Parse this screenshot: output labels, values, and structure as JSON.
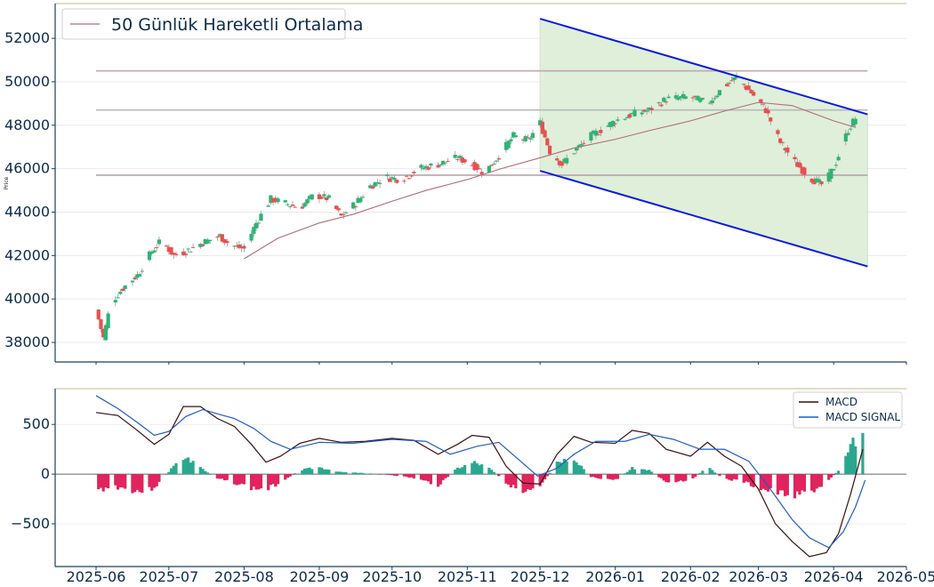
{
  "chart_data": [
    {
      "type": "candlestick",
      "ylabel": "Price",
      "ylim": [
        37100,
        53600
      ],
      "yticks": [
        38000,
        40000,
        42000,
        44000,
        46000,
        48000,
        50000,
        52000
      ],
      "ytick_labels": [
        "38000",
        "40000",
        "42000",
        "44000",
        "46000",
        "48000",
        "50000",
        "52000"
      ],
      "x_start": "2025-06-01",
      "x_end": "2026-04-15",
      "legend": {
        "label": "50 Günlük Hareketli Ortalama",
        "position": "top-left"
      },
      "horizontal_levels": [
        {
          "value": 50500,
          "color": "#c9a4ad"
        },
        {
          "value": 48700,
          "color": "#b9b9b9"
        },
        {
          "value": 45700,
          "color": "#b8a4a8"
        }
      ],
      "channel": {
        "color": "#0b1bdc",
        "fill": "#dcedd6",
        "upper": {
          "start_date": "2025-12-01",
          "start": 52900,
          "end_date": "2026-04-15",
          "end": 48500
        },
        "lower": {
          "start_date": "2025-12-01",
          "start": 45900,
          "end_date": "2026-04-15",
          "end": 41500
        }
      },
      "up_color": "#2ab673",
      "down_color": "#e8504d",
      "moving_average": {
        "name": "50 Günlük Hareketli Ortalama",
        "color": "#b06b7a",
        "points": [
          [
            "2025-08-01",
            41850
          ],
          [
            "2025-08-15",
            42800
          ],
          [
            "2025-09-01",
            43500
          ],
          [
            "2025-09-15",
            43900
          ],
          [
            "2025-10-01",
            44500
          ],
          [
            "2025-10-15",
            45000
          ],
          [
            "2025-11-01",
            45500
          ],
          [
            "2025-11-15",
            46000
          ],
          [
            "2025-12-01",
            46500
          ],
          [
            "2025-12-15",
            46950
          ],
          [
            "2026-01-01",
            47350
          ],
          [
            "2026-01-15",
            47750
          ],
          [
            "2026-02-01",
            48200
          ],
          [
            "2026-02-15",
            48650
          ],
          [
            "2026-03-01",
            49050
          ],
          [
            "2026-03-15",
            48900
          ],
          [
            "2026-04-01",
            48200
          ],
          [
            "2026-04-10",
            47900
          ]
        ]
      },
      "close_path": [
        [
          "2025-06-01",
          39500
        ],
        [
          "2025-06-04",
          38200
        ],
        [
          "2025-06-07",
          39800
        ],
        [
          "2025-06-12",
          40500
        ],
        [
          "2025-06-18",
          41100
        ],
        [
          "2025-06-24",
          42200
        ],
        [
          "2025-06-28",
          42700
        ],
        [
          "2025-07-03",
          42000
        ],
        [
          "2025-07-08",
          42200
        ],
        [
          "2025-07-15",
          42600
        ],
        [
          "2025-07-22",
          42900
        ],
        [
          "2025-07-26",
          42500
        ],
        [
          "2025-08-01",
          42300
        ],
        [
          "2025-08-06",
          43500
        ],
        [
          "2025-08-12",
          44600
        ],
        [
          "2025-08-18",
          44400
        ],
        [
          "2025-08-24",
          44200
        ],
        [
          "2025-08-30",
          44800
        ],
        [
          "2025-09-05",
          44600
        ],
        [
          "2025-09-10",
          43800
        ],
        [
          "2025-09-16",
          44400
        ],
        [
          "2025-09-22",
          45200
        ],
        [
          "2025-09-28",
          45600
        ],
        [
          "2025-10-05",
          45500
        ],
        [
          "2025-10-12",
          46000
        ],
        [
          "2025-10-20",
          46200
        ],
        [
          "2025-10-28",
          46500
        ],
        [
          "2025-11-03",
          46200
        ],
        [
          "2025-11-08",
          45800
        ],
        [
          "2025-11-14",
          46600
        ],
        [
          "2025-11-20",
          47500
        ],
        [
          "2025-11-26",
          47300
        ],
        [
          "2025-12-01",
          48100
        ],
        [
          "2025-12-05",
          46800
        ],
        [
          "2025-12-10",
          46200
        ],
        [
          "2025-12-15",
          46800
        ],
        [
          "2025-12-22",
          47500
        ],
        [
          "2026-01-01",
          48200
        ],
        [
          "2026-01-08",
          48500
        ],
        [
          "2026-01-15",
          48700
        ],
        [
          "2026-01-22",
          49200
        ],
        [
          "2026-02-01",
          49300
        ],
        [
          "2026-02-08",
          49000
        ],
        [
          "2026-02-15",
          49800
        ],
        [
          "2026-02-20",
          50200
        ],
        [
          "2026-02-26",
          49500
        ],
        [
          "2026-03-04",
          48700
        ],
        [
          "2026-03-10",
          47200
        ],
        [
          "2026-03-16",
          46300
        ],
        [
          "2026-03-22",
          45600
        ],
        [
          "2026-03-28",
          45200
        ],
        [
          "2026-04-02",
          46300
        ],
        [
          "2026-04-07",
          47800
        ],
        [
          "2026-04-11",
          48500
        ]
      ]
    },
    {
      "type": "line+bar",
      "ylim": [
        -930,
        860
      ],
      "yticks": [
        -500,
        0,
        500
      ],
      "ytick_labels": [
        "−500",
        "0",
        "500"
      ],
      "legend": {
        "position": "top-right"
      },
      "series": [
        {
          "name": "MACD",
          "color": "#3a0e0e",
          "points": [
            [
              "2025-06-01",
              620
            ],
            [
              "2025-06-10",
              590
            ],
            [
              "2025-06-18",
              440
            ],
            [
              "2025-06-25",
              300
            ],
            [
              "2025-07-01",
              400
            ],
            [
              "2025-07-07",
              680
            ],
            [
              "2025-07-14",
              680
            ],
            [
              "2025-07-21",
              560
            ],
            [
              "2025-07-28",
              480
            ],
            [
              "2025-08-04",
              300
            ],
            [
              "2025-08-10",
              120
            ],
            [
              "2025-08-16",
              180
            ],
            [
              "2025-08-24",
              310
            ],
            [
              "2025-09-01",
              360
            ],
            [
              "2025-09-10",
              320
            ],
            [
              "2025-09-20",
              330
            ],
            [
              "2025-10-01",
              360
            ],
            [
              "2025-10-10",
              340
            ],
            [
              "2025-10-20",
              200
            ],
            [
              "2025-10-28",
              300
            ],
            [
              "2025-11-03",
              390
            ],
            [
              "2025-11-10",
              370
            ],
            [
              "2025-11-17",
              80
            ],
            [
              "2025-11-24",
              -90
            ],
            [
              "2025-12-01",
              -100
            ],
            [
              "2025-12-08",
              200
            ],
            [
              "2025-12-15",
              380
            ],
            [
              "2025-12-22",
              320
            ],
            [
              "2026-01-01",
              310
            ],
            [
              "2026-01-08",
              440
            ],
            [
              "2026-01-15",
              410
            ],
            [
              "2026-01-22",
              250
            ],
            [
              "2026-02-01",
              180
            ],
            [
              "2026-02-08",
              320
            ],
            [
              "2026-02-15",
              180
            ],
            [
              "2026-02-22",
              80
            ],
            [
              "2026-03-01",
              -150
            ],
            [
              "2026-03-08",
              -500
            ],
            [
              "2026-03-15",
              -680
            ],
            [
              "2026-03-22",
              -830
            ],
            [
              "2026-03-29",
              -790
            ],
            [
              "2026-04-03",
              -600
            ],
            [
              "2026-04-08",
              -200
            ],
            [
              "2026-04-13",
              250
            ]
          ]
        },
        {
          "name": "MACD SIGNAL",
          "color": "#1f5cc4",
          "points": [
            [
              "2025-06-01",
              790
            ],
            [
              "2025-06-10",
              660
            ],
            [
              "2025-06-18",
              520
            ],
            [
              "2025-06-25",
              390
            ],
            [
              "2025-07-01",
              430
            ],
            [
              "2025-07-08",
              580
            ],
            [
              "2025-07-15",
              650
            ],
            [
              "2025-07-22",
              600
            ],
            [
              "2025-07-28",
              560
            ],
            [
              "2025-08-05",
              460
            ],
            [
              "2025-08-12",
              330
            ],
            [
              "2025-08-20",
              250
            ],
            [
              "2025-09-01",
              320
            ],
            [
              "2025-09-15",
              310
            ],
            [
              "2025-10-01",
              350
            ],
            [
              "2025-10-15",
              330
            ],
            [
              "2025-10-25",
              200
            ],
            [
              "2025-11-05",
              280
            ],
            [
              "2025-11-14",
              320
            ],
            [
              "2025-11-22",
              150
            ],
            [
              "2025-11-30",
              -20
            ],
            [
              "2025-12-08",
              60
            ],
            [
              "2025-12-15",
              200
            ],
            [
              "2025-12-24",
              330
            ],
            [
              "2026-01-05",
              330
            ],
            [
              "2026-01-15",
              400
            ],
            [
              "2026-01-25",
              350
            ],
            [
              "2026-02-05",
              250
            ],
            [
              "2026-02-15",
              250
            ],
            [
              "2026-02-25",
              130
            ],
            [
              "2026-03-05",
              -120
            ],
            [
              "2026-03-15",
              -460
            ],
            [
              "2026-03-22",
              -640
            ],
            [
              "2026-03-30",
              -740
            ],
            [
              "2026-04-05",
              -580
            ],
            [
              "2026-04-10",
              -330
            ],
            [
              "2026-04-14",
              -60
            ]
          ]
        }
      ],
      "histogram": {
        "up_color": "#2aa88f",
        "down_color": "#e0245e",
        "points": [
          [
            "2025-06-01",
            -170
          ],
          [
            "2025-06-08",
            -120
          ],
          [
            "2025-06-15",
            -160
          ],
          [
            "2025-06-22",
            -180
          ],
          [
            "2025-06-27",
            -90
          ],
          [
            "2025-07-03",
            80
          ],
          [
            "2025-07-08",
            170
          ],
          [
            "2025-07-13",
            90
          ],
          [
            "2025-07-20",
            -40
          ],
          [
            "2025-07-27",
            -80
          ],
          [
            "2025-08-04",
            -140
          ],
          [
            "2025-08-10",
            -160
          ],
          [
            "2025-08-16",
            -80
          ],
          [
            "2025-08-24",
            40
          ],
          [
            "2025-09-01",
            70
          ],
          [
            "2025-09-10",
            20
          ],
          [
            "2025-09-20",
            10
          ],
          [
            "2025-10-01",
            -10
          ],
          [
            "2025-10-10",
            -40
          ],
          [
            "2025-10-20",
            -110
          ],
          [
            "2025-10-28",
            60
          ],
          [
            "2025-11-04",
            120
          ],
          [
            "2025-11-10",
            60
          ],
          [
            "2025-11-17",
            -80
          ],
          [
            "2025-11-24",
            -200
          ],
          [
            "2025-12-01",
            -140
          ],
          [
            "2025-12-08",
            130
          ],
          [
            "2025-12-15",
            170
          ],
          [
            "2025-12-22",
            -30
          ],
          [
            "2026-01-01",
            -60
          ],
          [
            "2026-01-08",
            60
          ],
          [
            "2026-01-15",
            40
          ],
          [
            "2026-01-22",
            -80
          ],
          [
            "2026-02-01",
            -60
          ],
          [
            "2026-02-08",
            70
          ],
          [
            "2026-02-15",
            -50
          ],
          [
            "2026-02-22",
            -70
          ],
          [
            "2026-03-01",
            -140
          ],
          [
            "2026-03-08",
            -190
          ],
          [
            "2026-03-15",
            -210
          ],
          [
            "2026-03-22",
            -190
          ],
          [
            "2026-03-29",
            -90
          ],
          [
            "2026-04-03",
            40
          ],
          [
            "2026-04-08",
            300
          ],
          [
            "2026-04-13",
            360
          ]
        ]
      }
    }
  ],
  "x_ticks": [
    "2025-06",
    "2025-07",
    "2025-08",
    "2025-09",
    "2025-10",
    "2025-11",
    "2025-12",
    "2026-01",
    "2026-02",
    "2026-03",
    "2026-04",
    "2026-05"
  ]
}
